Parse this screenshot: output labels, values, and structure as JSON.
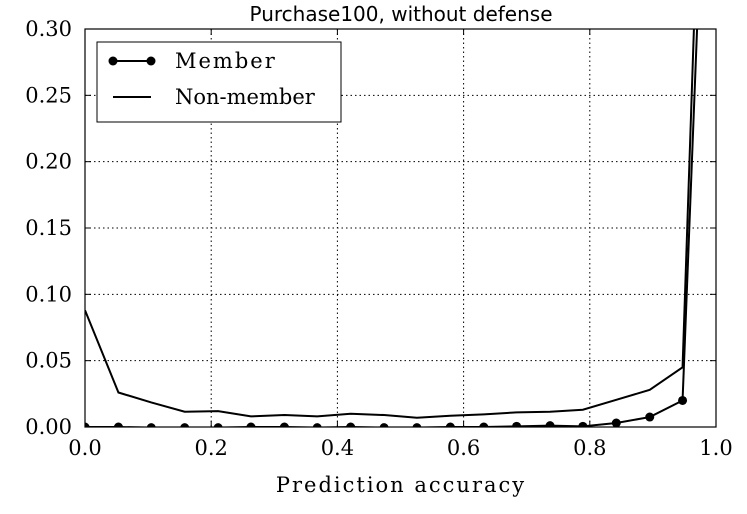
{
  "chart_data": {
    "type": "line",
    "title": "Purchase100, without defense",
    "xlabel": "Prediction accuracy",
    "ylabel": "",
    "xlim": [
      0.0,
      1.0
    ],
    "ylim": [
      0.0,
      0.3
    ],
    "xticks": [
      0.0,
      0.2,
      0.4,
      0.6,
      0.8,
      1.0
    ],
    "xtick_labels": [
      "0.0",
      "0.2",
      "0.4",
      "0.6",
      "0.8",
      "1.0"
    ],
    "yticks": [
      0.0,
      0.05,
      0.1,
      0.15,
      0.2,
      0.25,
      0.3
    ],
    "ytick_labels": [
      "0.00",
      "0.05",
      "0.10",
      "0.15",
      "0.20",
      "0.25",
      "0.30"
    ],
    "grid": true,
    "legend_position": "top-left",
    "series": [
      {
        "name": "Member",
        "marker": "circle",
        "color": "#000000",
        "x": [
          0.0,
          0.053,
          0.105,
          0.158,
          0.211,
          0.263,
          0.316,
          0.368,
          0.421,
          0.474,
          0.526,
          0.579,
          0.632,
          0.684,
          0.737,
          0.789,
          0.842,
          0.895,
          0.947,
          0.97
        ],
        "y": [
          0.0,
          0.0,
          -0.0005,
          -0.0005,
          -0.0005,
          0.0,
          0.0,
          -0.0005,
          0.0,
          -0.0005,
          -0.0005,
          0.0,
          0.0,
          0.0005,
          0.001,
          0.0005,
          0.003,
          0.0075,
          0.02,
          0.3
        ]
      },
      {
        "name": "Non-member",
        "marker": "none",
        "color": "#000000",
        "x": [
          0.0,
          0.053,
          0.105,
          0.158,
          0.211,
          0.263,
          0.316,
          0.368,
          0.421,
          0.474,
          0.526,
          0.579,
          0.632,
          0.684,
          0.737,
          0.789,
          0.842,
          0.895,
          0.947,
          0.965
        ],
        "y": [
          0.088,
          0.026,
          0.0185,
          0.0115,
          0.012,
          0.008,
          0.009,
          0.008,
          0.01,
          0.009,
          0.007,
          0.0085,
          0.0095,
          0.011,
          0.0115,
          0.013,
          0.0205,
          0.028,
          0.045,
          0.3
        ]
      }
    ]
  }
}
